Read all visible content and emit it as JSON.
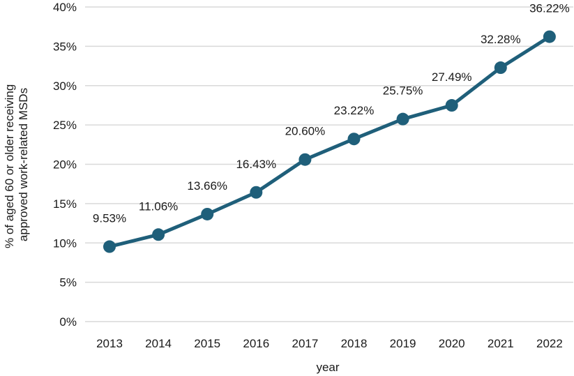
{
  "chart_data": {
    "type": "line",
    "x": [
      "2013",
      "2014",
      "2015",
      "2016",
      "2017",
      "2018",
      "2019",
      "2020",
      "2021",
      "2022"
    ],
    "series": [
      {
        "values": [
          9.53,
          11.06,
          13.66,
          16.43,
          20.6,
          23.22,
          25.75,
          27.49,
          32.28,
          36.22
        ],
        "labels": [
          "9.53%",
          "11.06%",
          "13.66%",
          "16.43%",
          "20.60%",
          "23.22%",
          "25.75%",
          "27.49%",
          "32.28%",
          "36.22%"
        ]
      }
    ],
    "xlabel": "year",
    "ylabel_lines": [
      "% of aged 60 or older receiving",
      "approved work-related MSDs"
    ],
    "ylim": [
      0,
      40
    ],
    "yticks": [
      "0%",
      "5%",
      "10%",
      "15%",
      "20%",
      "25%",
      "30%",
      "35%",
      "40%"
    ],
    "ytick_values": [
      0,
      5,
      10,
      15,
      20,
      25,
      30,
      35,
      40
    ],
    "grid": true,
    "legend": "none",
    "colors": {
      "line": "#1f5f7a",
      "grid": "#d9d9d9",
      "text": "#1a1a1a"
    }
  }
}
